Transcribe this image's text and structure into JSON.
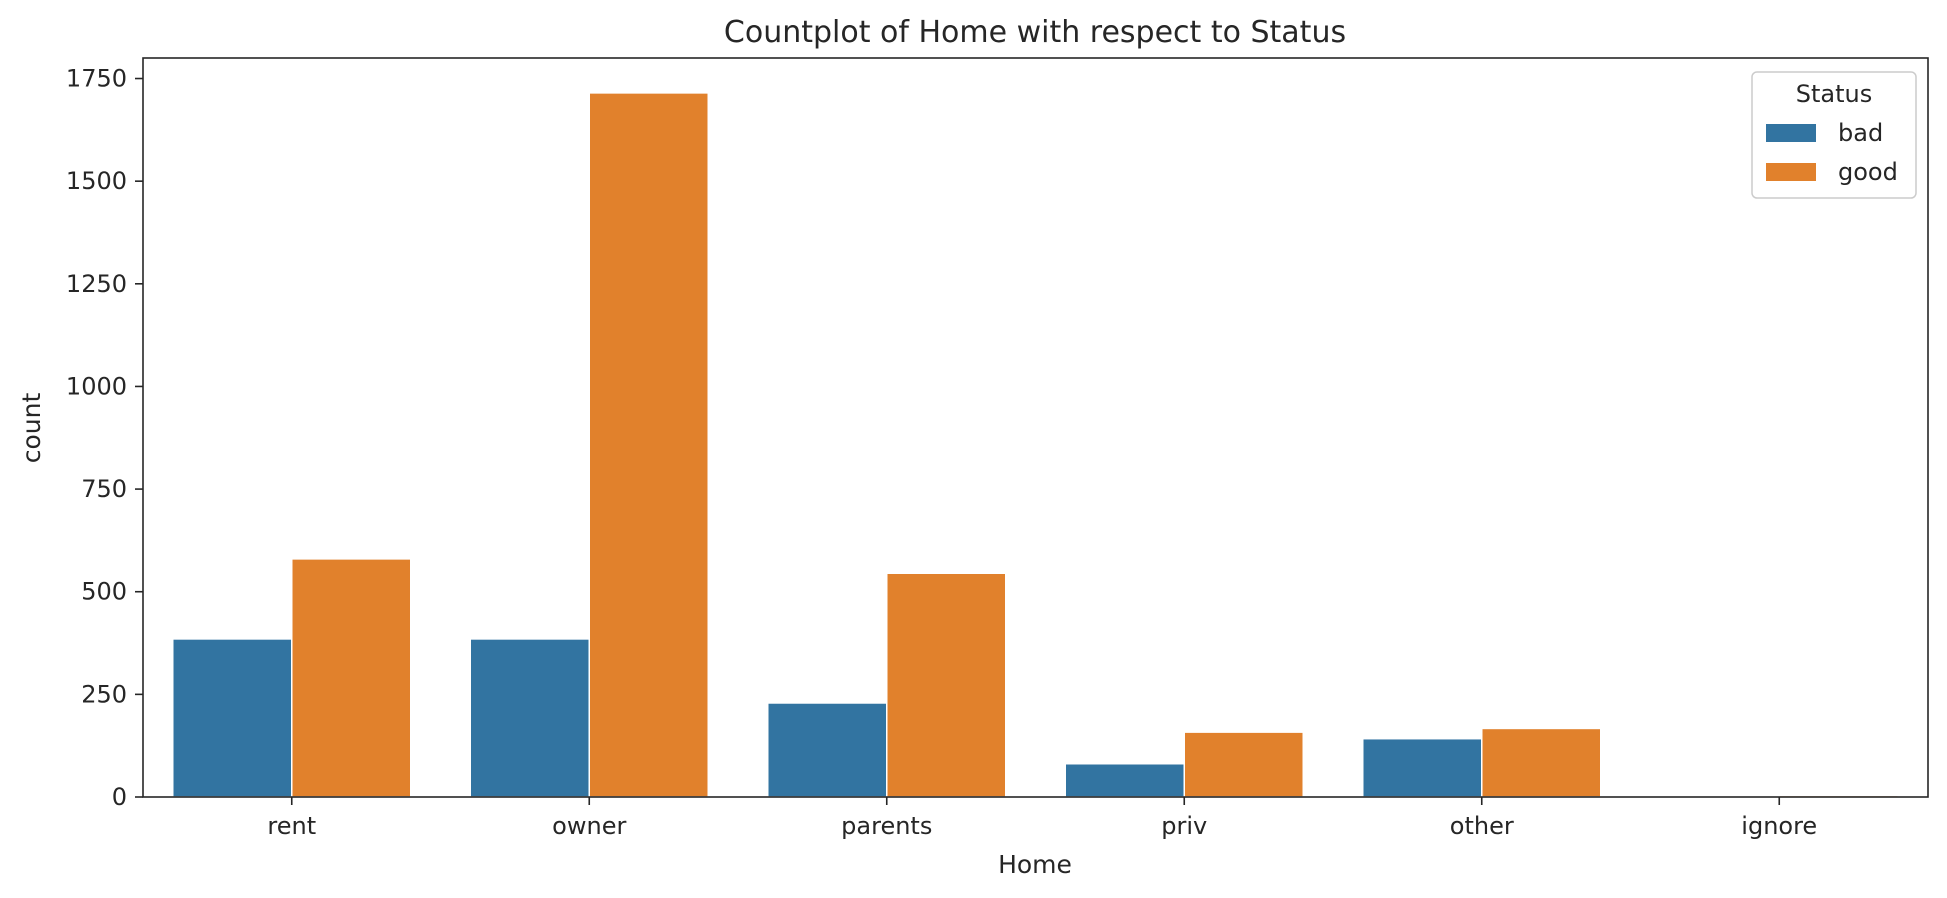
{
  "chart_data": {
    "type": "bar",
    "title": "Countplot of Home with respect to Status",
    "xlabel": "Home",
    "ylabel": "count",
    "categories": [
      "rent",
      "owner",
      "parents",
      "priv",
      "other",
      "ignore"
    ],
    "series": [
      {
        "name": "bad",
        "color": "#3274a1",
        "values": [
          385,
          385,
          229,
          81,
          142,
          1
        ]
      },
      {
        "name": "good",
        "color": "#e1812c",
        "values": [
          580,
          1715,
          545,
          158,
          167,
          4
        ]
      }
    ],
    "ylim": [
      0,
      1800
    ],
    "yticks": [
      0,
      250,
      500,
      750,
      1000,
      1250,
      1500,
      1750
    ],
    "yticks_labels": [
      "0",
      "250",
      "500",
      "750",
      "1000",
      "1250",
      "1500",
      "1750"
    ],
    "grid": false,
    "legend": {
      "title": "Status",
      "placement": "top-right"
    }
  }
}
